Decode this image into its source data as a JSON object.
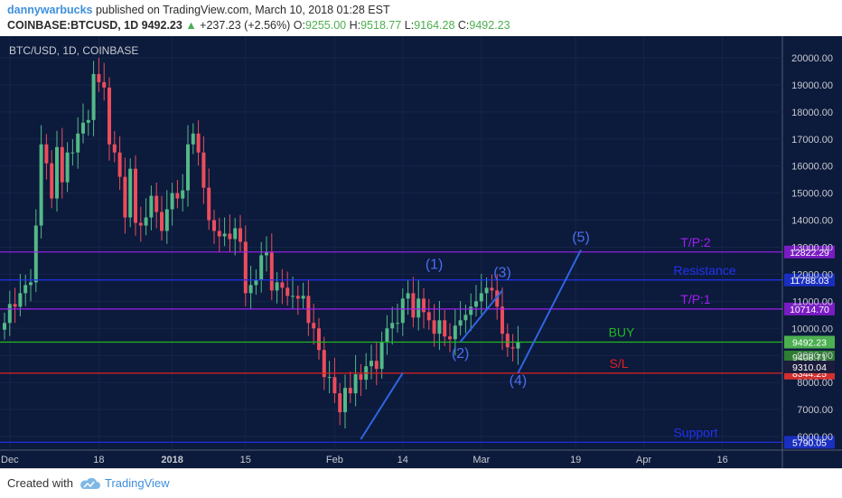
{
  "header": {
    "author": "dannywarbucks",
    "published": " published on TradingView.com, March 10, 2018 01:28 EST",
    "symbol": "COINBASE:BTCUSD, 1D",
    "last": "9492.23",
    "change_arrow": "▲",
    "change": "+237.23 (+2.56%)",
    "o_label": "O:",
    "o_value": "9255.00",
    "h_label": "H:",
    "h_value": "9518.77",
    "l_label": "L:",
    "l_value": "9164.28",
    "c_label": "C:",
    "c_value": "9492.23"
  },
  "chart_data": {
    "type": "candlestick",
    "title": "BTC/USD, 1D, COINBASE",
    "colors": {
      "up": "#53b987",
      "down": "#eb4d5c",
      "bg": "#0c1a3c",
      "axis_text": "#c8cad0",
      "trend": "#2f66e0"
    },
    "x_start": "2017-11-30",
    "x_ticks": [
      "Dec",
      "18",
      "2018",
      "15",
      "Feb",
      "14",
      "Mar",
      "19",
      "Apr",
      "16"
    ],
    "x_tick_dates": [
      "2017-12-01",
      "2017-12-18",
      "2018-01-01",
      "2018-01-15",
      "2018-02-01",
      "2018-02-14",
      "2018-03-01",
      "2018-03-19",
      "2018-04-01",
      "2018-04-16"
    ],
    "y_ticks": [
      6000,
      7000,
      8000,
      9000,
      10000,
      11000,
      12000,
      13000,
      14000,
      15000,
      16000,
      17000,
      18000,
      19000,
      20000
    ],
    "y_tick_labels": [
      "6000.00",
      "7000.00",
      "8000.00",
      "9000.00",
      "10000.00",
      "11000.00",
      "12000.00",
      "13000.00",
      "14000.00",
      "15000.00",
      "16000.00",
      "17000.00",
      "18000.00",
      "19000.00",
      "20000.00"
    ],
    "ylim": [
      5500,
      20800
    ],
    "closes": [
      10200,
      10900,
      10800,
      11300,
      11600,
      11700,
      13800,
      16800,
      16100,
      14800,
      16700,
      15400,
      16500,
      16500,
      17200,
      17600,
      17700,
      19400,
      19100,
      18900,
      16800,
      16500,
      15600,
      14100,
      15900,
      13900,
      13800,
      14100,
      14900,
      14300,
      13600,
      14400,
      15000,
      14800,
      15100,
      16800,
      17200,
      16500,
      15200,
      14000,
      13600,
      13400,
      13500,
      13300,
      13700,
      13200,
      11300,
      11600,
      11800,
      12700,
      12800,
      11400,
      11700,
      11500,
      11200,
      11200,
      11100,
      11200,
      10200,
      10000,
      9200,
      8200,
      8200,
      7600,
      6900,
      7800,
      7600,
      8300,
      8100,
      8600,
      8800,
      8500,
      9500,
      10000,
      10200,
      10200,
      11100,
      11300,
      10400,
      11100,
      10600,
      10300,
      9800,
      10300,
      9700,
      9600,
      10100,
      10300,
      10500,
      10800,
      11000,
      11300,
      11500,
      11400,
      10800,
      9800,
      9300,
      9255,
      9492
    ],
    "levels": [
      {
        "name": "T/P:2",
        "value": 12822.29,
        "label": "12822.29",
        "color": "#a020f0",
        "tag_color": "#7a1cc4"
      },
      {
        "name": "Resistance",
        "value": 11788.03,
        "label": "11788.03",
        "color": "#2233ee",
        "tag_color": "#1a2fbf"
      },
      {
        "name": "T/P:1",
        "value": 10714.7,
        "label": "10714.70",
        "color": "#a020f0",
        "tag_color": "#7a1cc4"
      },
      {
        "name": "BUY",
        "value": 9492.23,
        "label": "9492.23",
        "color": "#22b822",
        "tag_color": "#4caf50"
      },
      {
        "name": "S/L",
        "value": 8344.25,
        "label": "8344.25",
        "color": "#e02020",
        "tag_color": "#d32f2f"
      },
      {
        "name": "Support",
        "value": 5790.05,
        "label": "5790.05",
        "color": "#2233ee",
        "tag_color": "#1a2fbf"
      }
    ],
    "extra_tags": [
      {
        "label": "9408.71",
        "value": 9408.71,
        "color": "#2e7d32"
      },
      {
        "label": "9310.04",
        "value": 9310.04,
        "color": "#1c1c3c"
      }
    ],
    "waves": [
      {
        "label": "(1)",
        "date": "2018-02-20",
        "value": 12200
      },
      {
        "label": "(2)",
        "date": "2018-02-25",
        "value": 8900
      },
      {
        "label": "(3)",
        "date": "2018-03-05",
        "value": 11900
      },
      {
        "label": "(4)",
        "date": "2018-03-08",
        "value": 7900
      },
      {
        "label": "(5)",
        "date": "2018-03-20",
        "value": 13200
      }
    ],
    "trendlines": [
      [
        [
          "2018-02-06",
          5900
        ],
        [
          "2018-02-14",
          8350
        ]
      ],
      [
        [
          "2018-02-25",
          9500
        ],
        [
          "2018-03-05",
          11400
        ]
      ],
      [
        [
          "2018-03-08",
          8350
        ],
        [
          "2018-03-20",
          12900
        ]
      ]
    ]
  },
  "footer": {
    "created": "Created with",
    "brand": "TradingView"
  }
}
